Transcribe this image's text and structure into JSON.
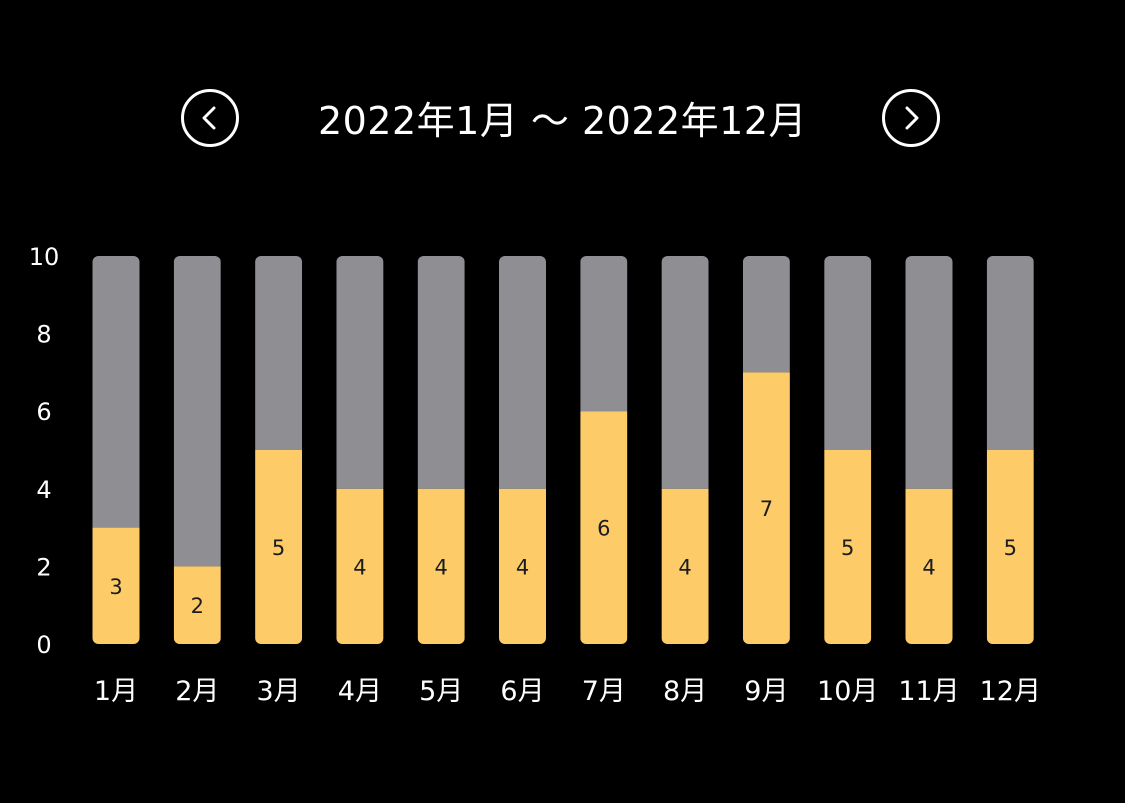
{
  "header": {
    "prev_icon": "chevron-left-icon",
    "next_icon": "chevron-right-icon",
    "range_label": "2022年1月 〜 2022年12月"
  },
  "colors": {
    "background": "#000000",
    "filled": "#FDCC69",
    "remaining": "#8E8E93",
    "text": "#FFFFFF",
    "value_text": "#1C1C1E"
  },
  "chart_data": {
    "type": "bar",
    "stacked": true,
    "categories": [
      "1月",
      "2月",
      "3月",
      "4月",
      "5月",
      "6月",
      "7月",
      "8月",
      "9月",
      "10月",
      "11月",
      "12月"
    ],
    "values": [
      3,
      2,
      5,
      4,
      4,
      4,
      6,
      4,
      7,
      5,
      4,
      5
    ],
    "max_value": 10,
    "ylim": [
      0,
      10
    ],
    "yticks": [
      "0",
      "2",
      "4",
      "6",
      "8",
      "10"
    ],
    "data_labels": [
      "3",
      "2",
      "5",
      "4",
      "4",
      "4",
      "6",
      "4",
      "7",
      "5",
      "4",
      "5"
    ],
    "grid": false,
    "title": "",
    "xlabel": "",
    "ylabel": ""
  }
}
